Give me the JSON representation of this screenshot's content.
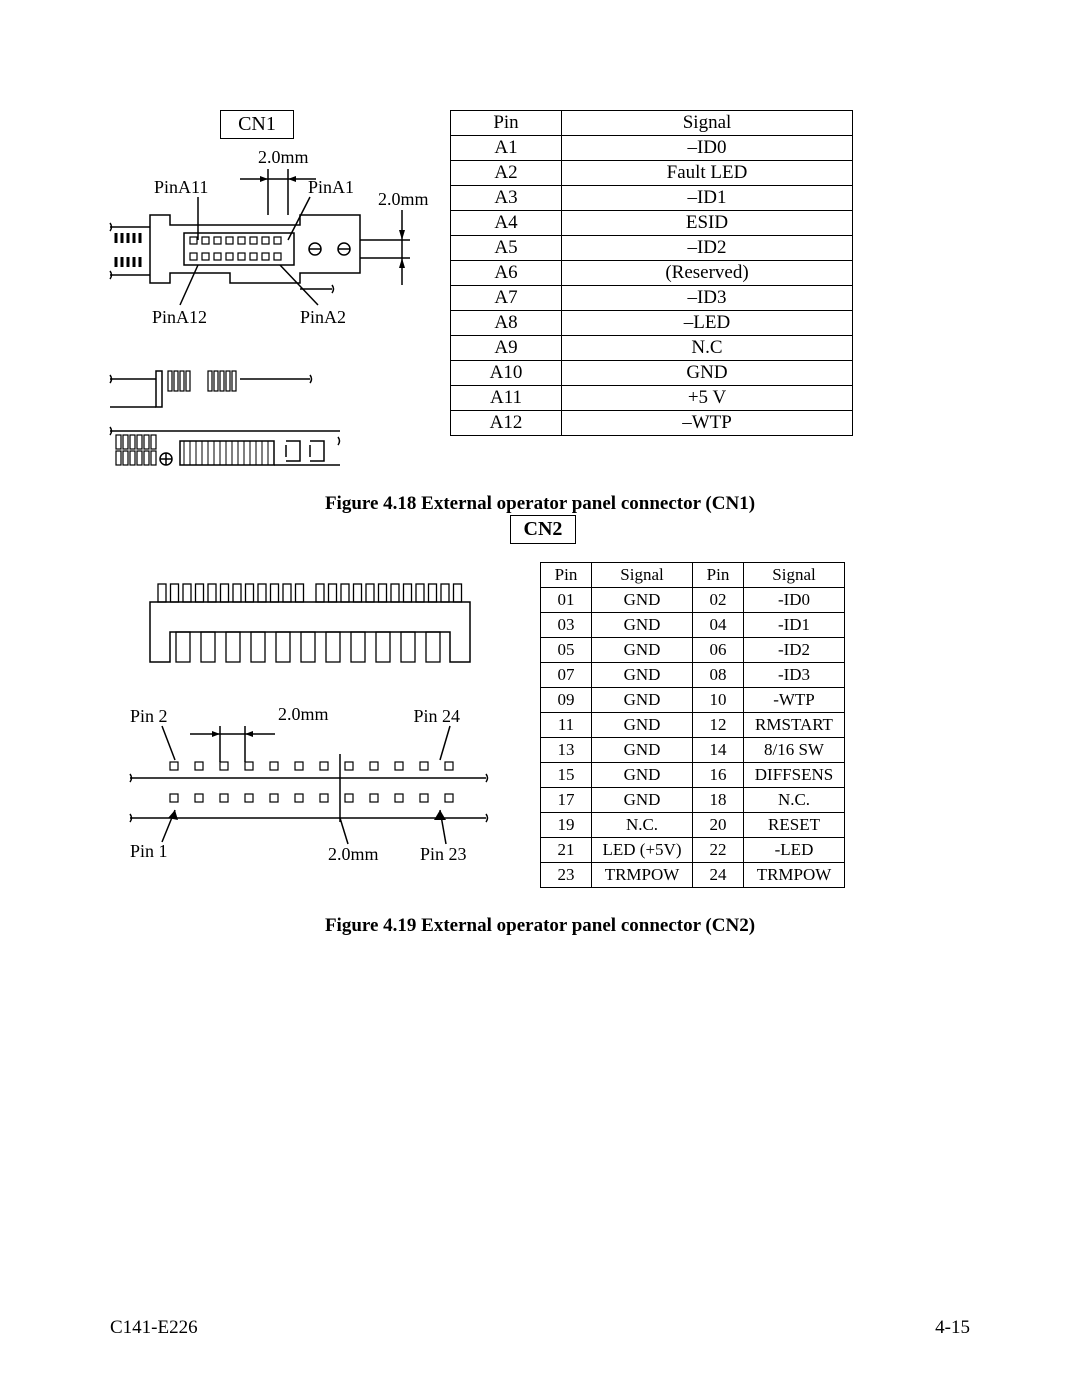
{
  "footer": {
    "docnum": "C141-E226",
    "pagenum": "4-15"
  },
  "fig418": {
    "cn_label": "CN1",
    "caption": "Figure 4.18   External operator panel connector (CN1)",
    "diagram": {
      "dim_top": "2.0mm",
      "dim_right": "2.0mm",
      "pinA11": "PinA11",
      "pinA1": "PinA1",
      "pinA12": "PinA12",
      "pinA2": "PinA2"
    },
    "table": {
      "headers": [
        "Pin",
        "Signal"
      ],
      "rows": [
        [
          "A1",
          "–ID0"
        ],
        [
          "A2",
          "Fault LED"
        ],
        [
          "A3",
          "–ID1"
        ],
        [
          "A4",
          "ESID"
        ],
        [
          "A5",
          "–ID2"
        ],
        [
          "A6",
          "(Reserved)"
        ],
        [
          "A7",
          "–ID3"
        ],
        [
          "A8",
          "–LED"
        ],
        [
          "A9",
          "N.C"
        ],
        [
          "A10",
          "GND"
        ],
        [
          "A11",
          "+5 V"
        ],
        [
          "A12",
          "–WTP"
        ]
      ]
    }
  },
  "fig419": {
    "cn_label": "CN2",
    "caption": "Figure 4.19   External operator panel connector (CN2)",
    "diagram": {
      "dim_top": "2.0mm",
      "dim_bottom": "2.0mm",
      "pin2": "Pin 2",
      "pin24": "Pin 24",
      "pin1": "Pin 1",
      "pin23": "Pin 23"
    },
    "table": {
      "headers": [
        "Pin",
        "Signal",
        "Pin",
        "Signal"
      ],
      "rows": [
        [
          "01",
          "GND",
          "02",
          "-ID0"
        ],
        [
          "03",
          "GND",
          "04",
          "-ID1"
        ],
        [
          "05",
          "GND",
          "06",
          "-ID2"
        ],
        [
          "07",
          "GND",
          "08",
          "-ID3"
        ],
        [
          "09",
          "GND",
          "10",
          "-WTP"
        ],
        [
          "11",
          "GND",
          "12",
          "RMSTART"
        ],
        [
          "13",
          "GND",
          "14",
          "8/16 SW"
        ],
        [
          "15",
          "GND",
          "16",
          "DIFFSENS"
        ],
        [
          "17",
          "GND",
          "18",
          "N.C."
        ],
        [
          "19",
          "N.C.",
          "20",
          "RESET"
        ],
        [
          "21",
          "LED (+5V)",
          "22",
          "-LED"
        ],
        [
          "23",
          "TRMPOW",
          "24",
          "TRMPOW"
        ]
      ]
    }
  }
}
